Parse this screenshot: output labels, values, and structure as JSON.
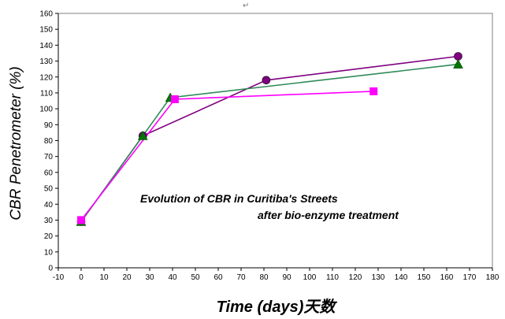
{
  "chart_data": {
    "type": "line",
    "title": "",
    "ylabel": "CBR Penetrometer (%)",
    "xlabel": "Time  (days)天数",
    "annotation_lines": [
      "Evolution of CBR in Curitiba's Streets",
      "after bio-enzyme treatment"
    ],
    "top_mark": "↵",
    "xlim": [
      -10,
      180
    ],
    "ylim": [
      0,
      160
    ],
    "x_ticks": [
      -10,
      0,
      10,
      20,
      30,
      40,
      50,
      60,
      70,
      80,
      90,
      100,
      110,
      120,
      130,
      140,
      150,
      160,
      170,
      180
    ],
    "y_ticks": [
      0,
      10,
      20,
      30,
      40,
      50,
      60,
      70,
      80,
      90,
      100,
      110,
      120,
      130,
      140,
      150,
      160
    ],
    "grid": false,
    "legend": "none",
    "series": [
      {
        "marker": "circle",
        "color": "#800080",
        "points": [
          [
            0,
            29
          ],
          [
            27,
            83
          ],
          [
            81,
            118
          ],
          [
            165,
            133
          ]
        ]
      },
      {
        "marker": "triangle",
        "color": "#2e8b57",
        "marker_color": "#007700",
        "points": [
          [
            0,
            29
          ],
          [
            27,
            83
          ],
          [
            39,
            107
          ],
          [
            165,
            128
          ]
        ]
      },
      {
        "marker": "square",
        "color": "#ff00ff",
        "points": [
          [
            0,
            30
          ],
          [
            41,
            106
          ],
          [
            128,
            111
          ]
        ]
      }
    ]
  }
}
